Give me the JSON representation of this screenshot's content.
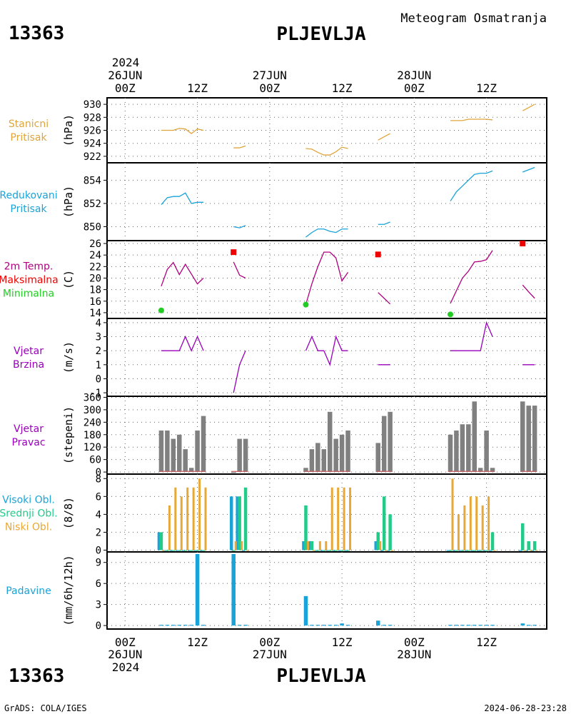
{
  "header": {
    "station_id": "13363",
    "station_name": "PLJEVLJA",
    "product": "Meteogram Osmatranja",
    "credit": "GrADS: COLA/IGES",
    "timestamp": "2024-06-28-23:28"
  },
  "time_axis": {
    "top_year": "2024",
    "bottom_year": "2024",
    "days": [
      "26JUN",
      "27JUN",
      "28JUN"
    ],
    "ticks": [
      {
        "label": "00Z",
        "hour": 0
      },
      {
        "label": "12Z",
        "hour": 12
      },
      {
        "label": "00Z",
        "hour": 24
      },
      {
        "label": "12Z",
        "hour": 36
      },
      {
        "label": "00Z",
        "hour": 48
      },
      {
        "label": "12Z",
        "hour": 60
      }
    ],
    "x_range_hours": [
      -3,
      70
    ]
  },
  "colors": {
    "station_pressure": "#e0a53a",
    "reduced_pressure": "#1aa3d9",
    "temperature": "#b0007f",
    "max_marker": "#ee0000",
    "min_marker": "#22cc22",
    "wind": "#9900bb",
    "wind_dir_bar": "#808080",
    "wind_dir_line": "#cc6666",
    "cloud_high": "#1aa3d9",
    "cloud_mid": "#22cc88",
    "cloud_low": "#e8a838",
    "precip": "#1aa3d9"
  },
  "chart_data": [
    {
      "id": "stanicni",
      "type": "line",
      "labels": [
        "Stanicni",
        "Pritisak"
      ],
      "ylabel": "(hPa)",
      "yticks": [
        922,
        924,
        926,
        928,
        930
      ],
      "ylim": [
        921,
        931
      ],
      "series": [
        {
          "color_key": "station_pressure",
          "segments": [
            [
              [
                6,
                926.0
              ],
              [
                7,
                926.0
              ],
              [
                8,
                926.0
              ],
              [
                9,
                926.3
              ],
              [
                10,
                926.2
              ],
              [
                11,
                925.5
              ],
              [
                12,
                926.2
              ],
              [
                13,
                926.0
              ]
            ],
            [
              [
                18,
                923.3
              ],
              [
                19,
                923.3
              ],
              [
                20,
                923.6
              ]
            ],
            [
              [
                30,
                923.2
              ],
              [
                31,
                923.1
              ],
              [
                32,
                922.6
              ],
              [
                33,
                922.2
              ],
              [
                34,
                922.2
              ],
              [
                35,
                922.7
              ],
              [
                36,
                923.4
              ],
              [
                37,
                923.2
              ]
            ],
            [
              [
                42,
                924.5
              ],
              [
                43,
                925.0
              ],
              [
                44,
                925.5
              ]
            ],
            [
              [
                54,
                927.5
              ],
              [
                55,
                927.5
              ],
              [
                56,
                927.5
              ],
              [
                57,
                927.7
              ],
              [
                58,
                927.7
              ],
              [
                59,
                927.7
              ],
              [
                60,
                927.7
              ],
              [
                61,
                927.6
              ]
            ],
            [
              [
                66,
                929.0
              ],
              [
                67,
                929.5
              ],
              [
                68,
                930.0
              ]
            ]
          ]
        }
      ]
    },
    {
      "id": "redukovani",
      "type": "line",
      "labels": [
        "Redukovani",
        "Pritisak"
      ],
      "ylabel": "(hPa)",
      "yticks": [
        850,
        852,
        854
      ],
      "ylim": [
        848.8,
        855.5
      ],
      "series": [
        {
          "color_key": "reduced_pressure",
          "segments": [
            [
              [
                6,
                851.9
              ],
              [
                7,
                852.5
              ],
              [
                8,
                852.6
              ],
              [
                9,
                852.6
              ],
              [
                10,
                852.9
              ],
              [
                11,
                852.0
              ],
              [
                12,
                852.1
              ],
              [
                13,
                852.1
              ]
            ],
            [
              [
                18,
                850.0
              ],
              [
                19,
                849.9
              ],
              [
                20,
                850.1
              ]
            ],
            [
              [
                30,
                849.1
              ],
              [
                31,
                849.5
              ],
              [
                32,
                849.8
              ],
              [
                33,
                849.8
              ],
              [
                34,
                849.6
              ],
              [
                35,
                849.5
              ],
              [
                36,
                849.8
              ],
              [
                37,
                849.8
              ]
            ],
            [
              [
                42,
                850.2
              ],
              [
                43,
                850.2
              ],
              [
                44,
                850.4
              ]
            ],
            [
              [
                54,
                852.2
              ],
              [
                55,
                853.0
              ],
              [
                56,
                853.5
              ],
              [
                57,
                854.0
              ],
              [
                58,
                854.5
              ],
              [
                59,
                854.6
              ],
              [
                60,
                854.6
              ],
              [
                61,
                854.8
              ]
            ],
            [
              [
                66,
                854.7
              ],
              [
                67,
                854.9
              ],
              [
                68,
                855.1
              ]
            ]
          ]
        }
      ]
    },
    {
      "id": "temperatura",
      "type": "line",
      "labels": [
        "2m Temp.",
        "Maksimalna",
        "Minimalna"
      ],
      "label_color_keys": [
        "temperature",
        "max_marker",
        "min_marker"
      ],
      "ylabel": "(C)",
      "yticks": [
        14,
        16,
        18,
        20,
        22,
        24,
        26
      ],
      "ylim": [
        13,
        26.5
      ],
      "series": [
        {
          "color_key": "temperature",
          "segments": [
            [
              [
                6,
                18.6
              ],
              [
                7,
                21.5
              ],
              [
                8,
                22.7
              ],
              [
                9,
                20.6
              ],
              [
                10,
                22.4
              ],
              [
                11,
                20.7
              ],
              [
                12,
                19.0
              ],
              [
                13,
                20.0
              ]
            ],
            [
              [
                18,
                22.8
              ],
              [
                19,
                20.5
              ],
              [
                20,
                20.0
              ]
            ],
            [
              [
                30,
                15.4
              ],
              [
                31,
                19.0
              ],
              [
                32,
                22.0
              ],
              [
                33,
                24.5
              ],
              [
                34,
                24.5
              ],
              [
                35,
                23.5
              ],
              [
                36,
                19.5
              ],
              [
                37,
                21.0
              ]
            ],
            [
              [
                42,
                17.5
              ],
              [
                43,
                16.5
              ],
              [
                44,
                15.5
              ]
            ],
            [
              [
                54,
                15.6
              ],
              [
                55,
                17.8
              ],
              [
                56,
                20.0
              ],
              [
                57,
                21.2
              ],
              [
                58,
                22.8
              ],
              [
                59,
                22.9
              ],
              [
                60,
                23.2
              ],
              [
                61,
                24.8
              ]
            ],
            [
              [
                66,
                18.8
              ],
              [
                67,
                17.6
              ],
              [
                68,
                16.5
              ]
            ]
          ]
        }
      ],
      "maxima": [
        [
          18,
          24.5
        ],
        [
          42,
          24.1
        ],
        [
          66,
          26.0
        ]
      ],
      "minima": [
        [
          6,
          14.4
        ],
        [
          30,
          15.4
        ],
        [
          54,
          13.7
        ]
      ]
    },
    {
      "id": "brzina",
      "type": "line",
      "labels": [
        "Vjetar",
        "Brzina"
      ],
      "ylabel": "(m/s)",
      "yticks": [
        -1,
        0,
        1,
        2,
        3,
        4
      ],
      "ylim": [
        -1.25,
        4.3
      ],
      "series": [
        {
          "color_key": "wind",
          "segments": [
            [
              [
                6,
                2
              ],
              [
                7,
                2
              ],
              [
                8,
                2
              ],
              [
                9,
                2
              ],
              [
                10,
                3
              ],
              [
                11,
                2
              ],
              [
                12,
                3
              ],
              [
                13,
                2
              ]
            ],
            [
              [
                18,
                -1
              ],
              [
                19,
                1
              ],
              [
                20,
                2
              ]
            ],
            [
              [
                30,
                2
              ],
              [
                31,
                3
              ],
              [
                32,
                2
              ],
              [
                33,
                2
              ],
              [
                34,
                1
              ],
              [
                35,
                3
              ],
              [
                36,
                2
              ],
              [
                37,
                2
              ]
            ],
            [
              [
                42,
                1
              ],
              [
                43,
                1
              ],
              [
                44,
                1
              ]
            ],
            [
              [
                54,
                2
              ],
              [
                55,
                2
              ],
              [
                56,
                2
              ],
              [
                57,
                2
              ],
              [
                58,
                2
              ],
              [
                59,
                2
              ],
              [
                60,
                4
              ],
              [
                61,
                3
              ]
            ],
            [
              [
                66,
                1
              ],
              [
                67,
                1
              ],
              [
                68,
                1
              ]
            ]
          ]
        }
      ]
    },
    {
      "id": "pravac",
      "type": "bar",
      "labels": [
        "Vjetar",
        "Pravac"
      ],
      "ylabel": "(stepeni)",
      "yticks": [
        0,
        60,
        120,
        180,
        240,
        300,
        360
      ],
      "ylim": [
        -10,
        365
      ],
      "bar_color_key": "wind_dir_bar",
      "x": [
        6,
        7,
        8,
        9,
        10,
        11,
        12,
        13,
        18,
        19,
        20,
        30,
        31,
        32,
        33,
        34,
        35,
        36,
        37,
        42,
        43,
        44,
        54,
        55,
        56,
        57,
        58,
        59,
        60,
        61,
        66,
        67,
        68
      ],
      "values": [
        200,
        200,
        160,
        180,
        110,
        20,
        200,
        270,
        0,
        160,
        160,
        20,
        110,
        140,
        110,
        290,
        160,
        180,
        200,
        140,
        270,
        290,
        180,
        200,
        230,
        230,
        340,
        20,
        200,
        20,
        340,
        320,
        320
      ]
    },
    {
      "id": "oblaci",
      "type": "bar",
      "labels": [
        "Visoki Obl.",
        "Srednji Obl.",
        "Niski Obl."
      ],
      "label_color_keys": [
        "cloud_high",
        "cloud_mid",
        "cloud_low"
      ],
      "ylabel": "(8/8)",
      "yticks": [
        0,
        2,
        4,
        6,
        8
      ],
      "ylim": [
        -0.2,
        8.5
      ],
      "x": [
        6,
        7,
        8,
        9,
        10,
        11,
        12,
        13,
        18,
        19,
        20,
        30,
        31,
        32,
        33,
        34,
        35,
        36,
        37,
        42,
        43,
        44,
        54,
        55,
        56,
        57,
        58,
        59,
        60,
        61,
        66,
        67,
        68
      ],
      "series": [
        {
          "name": "Visoki Obl.",
          "color_key": "cloud_high",
          "values": [
            2,
            0,
            0,
            0,
            0,
            0,
            0,
            0,
            6,
            6,
            0,
            1,
            1,
            0,
            0,
            0,
            0,
            0,
            0,
            1,
            0,
            0,
            0,
            0,
            0,
            0,
            0,
            0,
            0,
            0,
            0,
            0,
            0
          ]
        },
        {
          "name": "Srednji Obl.",
          "color_key": "cloud_mid",
          "values": [
            2,
            0,
            0,
            0,
            0,
            0,
            0,
            0,
            0,
            6,
            7,
            5,
            1,
            0,
            0,
            0,
            0,
            0,
            0,
            2,
            6,
            4,
            0,
            0,
            0,
            0,
            0,
            0,
            0,
            2,
            3,
            1,
            1
          ]
        },
        {
          "name": "Niski Obl.",
          "color_key": "cloud_low",
          "values": [
            0,
            5,
            7,
            6,
            7,
            7,
            8,
            7,
            1,
            1,
            0,
            1,
            0,
            1,
            1,
            7,
            7,
            7,
            7,
            1,
            0,
            0,
            8,
            4,
            5,
            6,
            6,
            5,
            6,
            0,
            0,
            0,
            0
          ]
        }
      ]
    },
    {
      "id": "padavine",
      "type": "bar",
      "labels": [
        "Padavine"
      ],
      "ylabel": "(mm/6h/12h)",
      "yticks": [
        0,
        3,
        6,
        9
      ],
      "ylim": [
        -0.5,
        10.5
      ],
      "bar_color_key": "precip",
      "x": [
        6,
        7,
        8,
        9,
        10,
        11,
        12,
        13,
        18,
        19,
        20,
        30,
        31,
        32,
        33,
        34,
        35,
        36,
        37,
        42,
        43,
        44,
        54,
        55,
        56,
        57,
        58,
        59,
        60,
        61,
        66,
        67,
        68
      ],
      "values": [
        0.1,
        0.1,
        0.1,
        0.1,
        0.1,
        0.1,
        10.2,
        0.1,
        10.2,
        0.1,
        0.1,
        4.2,
        0.1,
        0.1,
        0.1,
        0.1,
        0.1,
        0.3,
        0.1,
        0.7,
        0.1,
        0.1,
        0.1,
        0.1,
        0.1,
        0.1,
        0.1,
        0.1,
        0.1,
        0.1,
        0.3,
        0.1,
        0.1
      ]
    }
  ]
}
